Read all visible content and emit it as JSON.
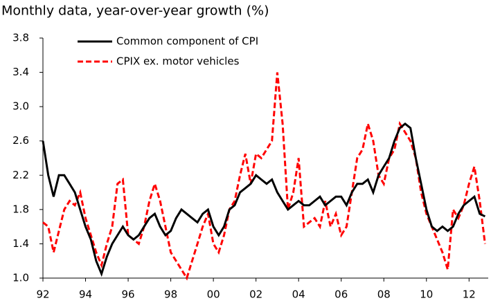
{
  "chart_data": {
    "type": "line",
    "title": "Monthly data, year-over-year growth (%)",
    "x": [
      1992,
      1992.25,
      1992.5,
      1992.75,
      1993,
      1993.25,
      1993.5,
      1993.75,
      1994,
      1994.25,
      1994.5,
      1994.75,
      1995,
      1995.25,
      1995.5,
      1995.75,
      1996,
      1996.25,
      1996.5,
      1996.75,
      1997,
      1997.25,
      1997.5,
      1997.75,
      1998,
      1998.25,
      1998.5,
      1998.75,
      1999,
      1999.25,
      1999.5,
      1999.75,
      2000,
      2000.25,
      2000.5,
      2000.75,
      2001,
      2001.25,
      2001.5,
      2001.75,
      2002,
      2002.25,
      2002.5,
      2002.75,
      2003,
      2003.25,
      2003.5,
      2003.75,
      2004,
      2004.25,
      2004.5,
      2004.75,
      2005,
      2005.25,
      2005.5,
      2005.75,
      2006,
      2006.25,
      2006.5,
      2006.75,
      2007,
      2007.25,
      2007.5,
      2007.75,
      2008,
      2008.25,
      2008.5,
      2008.75,
      2009,
      2009.25,
      2009.5,
      2009.75,
      2010,
      2010.25,
      2010.5,
      2010.75,
      2011,
      2011.25,
      2011.5,
      2011.75,
      2012,
      2012.25,
      2012.5,
      2012.75
    ],
    "series": [
      {
        "name": "Common component of CPI",
        "color": "#000000",
        "dash": false,
        "values": [
          2.6,
          2.2,
          1.95,
          2.2,
          2.2,
          2.1,
          2.0,
          1.8,
          1.6,
          1.45,
          1.2,
          1.05,
          1.25,
          1.4,
          1.5,
          1.6,
          1.5,
          1.45,
          1.5,
          1.6,
          1.7,
          1.75,
          1.6,
          1.5,
          1.55,
          1.7,
          1.8,
          1.75,
          1.7,
          1.65,
          1.75,
          1.8,
          1.6,
          1.5,
          1.6,
          1.8,
          1.85,
          2.0,
          2.05,
          2.1,
          2.2,
          2.15,
          2.1,
          2.15,
          2.0,
          1.9,
          1.8,
          1.85,
          1.9,
          1.85,
          1.85,
          1.9,
          1.95,
          1.85,
          1.9,
          1.95,
          1.95,
          1.85,
          2.0,
          2.1,
          2.1,
          2.15,
          2.0,
          2.2,
          2.3,
          2.4,
          2.6,
          2.75,
          2.8,
          2.75,
          2.4,
          2.1,
          1.8,
          1.6,
          1.55,
          1.6,
          1.55,
          1.6,
          1.75,
          1.85,
          1.9,
          1.95,
          1.75,
          1.72
        ]
      },
      {
        "name": "CPIX ex. motor vehicles",
        "color": "#ff0000",
        "dash": true,
        "values": [
          1.65,
          1.6,
          1.3,
          1.55,
          1.8,
          1.9,
          1.85,
          2.0,
          1.7,
          1.5,
          1.3,
          1.15,
          1.4,
          1.6,
          2.1,
          2.15,
          1.5,
          1.45,
          1.4,
          1.6,
          1.9,
          2.1,
          1.9,
          1.6,
          1.3,
          1.2,
          1.1,
          1.0,
          1.2,
          1.4,
          1.6,
          1.75,
          1.4,
          1.3,
          1.5,
          1.8,
          1.9,
          2.2,
          2.45,
          2.1,
          2.45,
          2.4,
          2.5,
          2.6,
          3.4,
          2.8,
          1.8,
          2.0,
          2.4,
          1.6,
          1.65,
          1.7,
          1.6,
          1.9,
          1.6,
          1.75,
          1.5,
          1.6,
          2.0,
          2.4,
          2.5,
          2.8,
          2.6,
          2.2,
          2.1,
          2.4,
          2.5,
          2.8,
          2.7,
          2.6,
          2.4,
          2.0,
          1.75,
          1.6,
          1.45,
          1.3,
          1.1,
          1.8,
          1.7,
          1.85,
          2.1,
          2.3,
          1.9,
          1.4
        ]
      }
    ],
    "xlim": [
      1992,
      2012.9
    ],
    "xticks": [
      {
        "value": 1992,
        "label": "92"
      },
      {
        "value": 1994,
        "label": "94"
      },
      {
        "value": 1996,
        "label": "96"
      },
      {
        "value": 1998,
        "label": "98"
      },
      {
        "value": 2000,
        "label": "00"
      },
      {
        "value": 2002,
        "label": "02"
      },
      {
        "value": 2004,
        "label": "04"
      },
      {
        "value": 2006,
        "label": "06"
      },
      {
        "value": 2008,
        "label": "08"
      },
      {
        "value": 2010,
        "label": "10"
      },
      {
        "value": 2012,
        "label": "12"
      }
    ],
    "ylim": [
      1,
      3.8
    ],
    "yticks": [
      {
        "value": 1,
        "label": "1.0"
      },
      1.4,
      1.8,
      2.2,
      2.6,
      {
        "value": 3,
        "label": "3.0"
      },
      3.4,
      3.8
    ],
    "grid": false,
    "legend": "top-left"
  }
}
